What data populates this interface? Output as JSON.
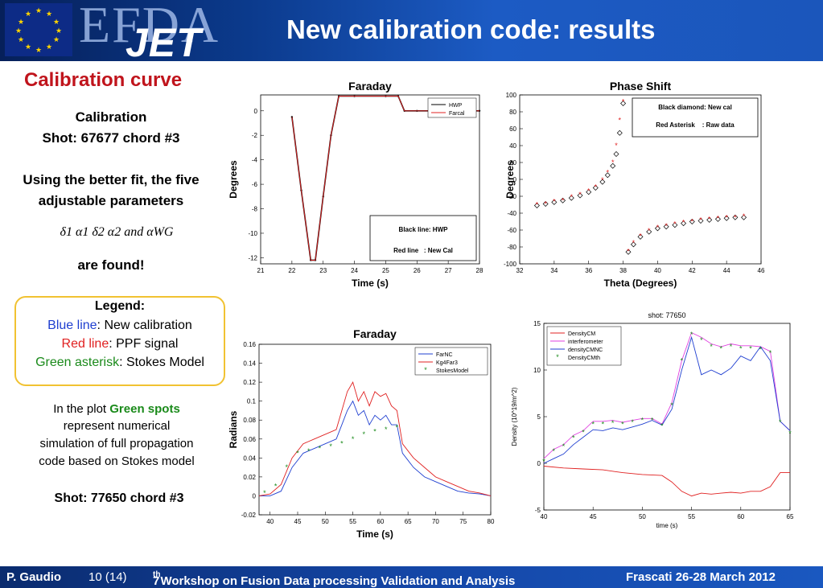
{
  "header": {
    "title": "New calibration code: results",
    "logo_efda": "EFDA",
    "logo_jet": "JET"
  },
  "left": {
    "heading": "Calibration curve",
    "calibration": "Calibration",
    "shot1": "Shot: 67677 chord #3",
    "better_fit_line1": "Using the better fit, the five",
    "better_fit_line2": "adjustable parameters",
    "params": "δ1  α1  δ2  α2  and  αWG",
    "are_found": "are found!",
    "legend_title": "Legend:",
    "legend_blue_key": "Blue line",
    "legend_blue_val": ": New calibration",
    "legend_red_key": "Red line",
    "legend_red_val": ": PPF signal",
    "legend_green_key": "Green asterisk",
    "legend_green_val": ": Stokes Model",
    "plot_line1_pre": "In the plot ",
    "plot_line1_em": "Green spots",
    "plot_line2": "represent numerical",
    "plot_line3": "simulation of full propagation",
    "plot_line4": "code based on Stokes model",
    "shot2": "Shot: 77650 chord #3"
  },
  "footer": {
    "author": "P. Gaudio",
    "page": "10 (14)",
    "workshop_pre": "7",
    "workshop_sup": "th",
    "workshop_rest": " Workshop on Fusion Data processing Validation and Analysis",
    "place_date": "Frascati 26-28 March 2012"
  },
  "colors": {
    "accent_red": "#c0141c",
    "blue": "#1f3fd0",
    "red": "#e02020",
    "green": "#1a8a1a",
    "legend_border": "#f1c232"
  },
  "chart_data": [
    {
      "type": "line",
      "title": "Faraday",
      "xlabel": "Time (s)",
      "ylabel": "Degrees",
      "xlim": [
        21,
        28
      ],
      "ylim": [
        -12.5,
        1.3
      ],
      "xticks": [
        21,
        22,
        23,
        24,
        25,
        26,
        27,
        28
      ],
      "yticks": [
        0,
        -2,
        -4,
        -6,
        -8,
        -10,
        -12
      ],
      "legend": [
        "HWP",
        "Farcal"
      ],
      "legend_placement": "top-right",
      "annotation": [
        "Black line: HWP",
        "Red line   : New Cal"
      ],
      "series": [
        {
          "name": "HWP",
          "color": "#000000",
          "x": [
            22.0,
            22.3,
            22.6,
            22.75,
            23.0,
            23.25,
            23.5,
            24.0,
            25.0,
            25.4,
            25.6,
            26.0,
            27.0,
            28.0
          ],
          "y": [
            -0.5,
            -6.5,
            -12.2,
            -12.2,
            -7.0,
            -2.0,
            1.2,
            1.2,
            1.2,
            1.2,
            0.0,
            0.0,
            0.0,
            0.0
          ]
        },
        {
          "name": "Farcal",
          "color": "#e02020",
          "x": [
            22.0,
            22.3,
            22.6,
            22.75,
            23.0,
            23.25,
            23.5,
            24.0,
            25.0,
            25.4,
            25.6,
            26.0,
            27.0,
            28.0
          ],
          "y": [
            -0.5,
            -6.5,
            -12.2,
            -12.2,
            -7.0,
            -2.0,
            1.2,
            1.2,
            1.2,
            1.2,
            0.0,
            0.0,
            0.0,
            0.0
          ]
        }
      ]
    },
    {
      "type": "scatter",
      "title": "Phase Shift",
      "xlabel": "Theta (Degrees)",
      "ylabel": "Degrees",
      "xlim": [
        32,
        46
      ],
      "ylim": [
        -100,
        100
      ],
      "xticks": [
        32,
        34,
        36,
        38,
        40,
        42,
        44,
        46
      ],
      "yticks": [
        100,
        80,
        60,
        40,
        20,
        0,
        -20,
        -40,
        -60,
        -80,
        -100
      ],
      "annotation": [
        "Black diamond: New cal",
        "Red Asterisk    : Raw data"
      ],
      "series": [
        {
          "name": "New cal",
          "marker": "diamond",
          "color": "#000000",
          "x": [
            33.0,
            33.5,
            34.0,
            34.5,
            35.0,
            35.5,
            36.0,
            36.4,
            36.8,
            37.1,
            37.4,
            37.6,
            37.8,
            38.0,
            38.3,
            38.6,
            39.0,
            39.5,
            40.0,
            40.5,
            41.0,
            41.5,
            42.0,
            42.5,
            43.0,
            43.5,
            44.0,
            44.5,
            45.0
          ],
          "y": [
            -31,
            -29,
            -27,
            -25,
            -22,
            -19,
            -15,
            -10,
            -3,
            5,
            16,
            30,
            55,
            90,
            -86,
            -77,
            -68,
            -62,
            -58,
            -56,
            -54,
            -52,
            -50,
            -49,
            -48,
            -47,
            -46,
            -45,
            -45
          ]
        },
        {
          "name": "Raw data",
          "marker": "asterisk",
          "color": "#e02020",
          "x": [
            33.0,
            33.5,
            34.0,
            34.5,
            35.0,
            35.5,
            36.0,
            36.4,
            36.8,
            37.1,
            37.4,
            37.6,
            37.8,
            38.0,
            38.3,
            38.6,
            39.0,
            39.5,
            40.0,
            40.5,
            41.0,
            41.5,
            42.0,
            42.5,
            43.0,
            43.5,
            44.0,
            44.5,
            45.0
          ],
          "y": [
            -30,
            -29,
            -26,
            -25,
            -21,
            -18,
            -14,
            -9,
            -1,
            8,
            20,
            40,
            70,
            92,
            -85,
            -75,
            -67,
            -61,
            -57,
            -55,
            -53,
            -51,
            -50,
            -48,
            -47,
            -46,
            -45,
            -45,
            -44
          ]
        }
      ]
    },
    {
      "type": "line",
      "title": "Faraday",
      "xlabel": "Time (s)",
      "ylabel": "Radians",
      "xlim": [
        38,
        80
      ],
      "ylim": [
        -0.02,
        0.16
      ],
      "xticks": [
        40,
        45,
        50,
        55,
        60,
        65,
        70,
        75,
        80
      ],
      "yticks": [
        0.16,
        0.14,
        0.12,
        0.1,
        0.08,
        0.06,
        0.04,
        0.02,
        0,
        -0.02
      ],
      "legend": [
        "FarNC",
        "Kg4Far3",
        "StokesModel"
      ],
      "legend_placement": "top-right",
      "series": [
        {
          "name": "FarNC",
          "color": "#1f3fd0",
          "x": [
            38,
            40,
            42,
            44,
            46,
            48,
            50,
            52,
            53,
            54,
            55,
            56,
            57,
            58,
            59,
            60,
            61,
            62,
            63,
            64,
            66,
            68,
            70,
            72,
            74,
            76,
            78,
            80
          ],
          "y": [
            0,
            0.0,
            0.005,
            0.03,
            0.045,
            0.05,
            0.055,
            0.06,
            0.075,
            0.09,
            0.1,
            0.085,
            0.09,
            0.075,
            0.085,
            0.08,
            0.085,
            0.075,
            0.075,
            0.045,
            0.03,
            0.02,
            0.015,
            0.01,
            0.005,
            0.003,
            0.002,
            0.0
          ]
        },
        {
          "name": "Kg4Far3",
          "color": "#e02020",
          "x": [
            38,
            40,
            42,
            44,
            46,
            48,
            50,
            52,
            53,
            54,
            55,
            56,
            57,
            58,
            59,
            60,
            61,
            62,
            63,
            64,
            66,
            68,
            70,
            72,
            74,
            76,
            78,
            80
          ],
          "y": [
            0,
            0.002,
            0.012,
            0.04,
            0.055,
            0.06,
            0.065,
            0.07,
            0.09,
            0.11,
            0.12,
            0.1,
            0.11,
            0.095,
            0.11,
            0.105,
            0.108,
            0.095,
            0.09,
            0.055,
            0.04,
            0.03,
            0.02,
            0.015,
            0.01,
            0.005,
            0.003,
            0.0
          ]
        },
        {
          "name": "StokesModel",
          "color": "#1a8a1a",
          "x": [
            39,
            41,
            43,
            45,
            47,
            49,
            51,
            53,
            55,
            57,
            59,
            61,
            63
          ],
          "y": [
            0.003,
            0.01,
            0.03,
            0.045,
            0.047,
            0.05,
            0.052,
            0.055,
            0.06,
            0.065,
            0.068,
            0.07,
            0.072
          ]
        }
      ]
    },
    {
      "type": "line",
      "title": "shot: 77650",
      "xlabel": "time (s)",
      "ylabel": "Density (10^19/m^2)",
      "xlim": [
        40,
        65
      ],
      "ylim": [
        -5,
        15
      ],
      "xticks": [
        40,
        45,
        50,
        55,
        60,
        65
      ],
      "yticks": [
        15,
        10,
        5,
        0,
        -5
      ],
      "legend": [
        "DensityCM",
        "interferometer",
        "densityCMNC",
        "DensityCMth"
      ],
      "legend_placement": "top-left",
      "series": [
        {
          "name": "DensityCM",
          "color": "#e02020",
          "x": [
            40,
            42,
            44,
            46,
            48,
            50,
            52,
            53,
            54,
            55,
            56,
            57,
            58,
            59,
            60,
            61,
            62,
            63,
            64,
            65
          ],
          "y": [
            -0.3,
            -0.5,
            -0.6,
            -0.7,
            -1.0,
            -1.2,
            -1.3,
            -2.0,
            -3.0,
            -3.5,
            -3.2,
            -3.3,
            -3.2,
            -3.1,
            -3.2,
            -3.0,
            -3.0,
            -2.5,
            -1.0,
            -1.0
          ]
        },
        {
          "name": "interferometer",
          "color": "#e040e0",
          "x": [
            40,
            41,
            42,
            43,
            44,
            45,
            46,
            47,
            48,
            49,
            50,
            51,
            52,
            53,
            54,
            55,
            56,
            57,
            58,
            59,
            60,
            61,
            62,
            63,
            64,
            65
          ],
          "y": [
            0.5,
            1.5,
            2.0,
            3.0,
            3.5,
            4.5,
            4.5,
            4.6,
            4.4,
            4.6,
            4.8,
            4.8,
            4.2,
            6.5,
            11.0,
            14.0,
            13.5,
            12.8,
            12.5,
            12.8,
            12.6,
            12.6,
            12.5,
            12.0,
            4.5,
            3.5
          ]
        },
        {
          "name": "densityCMNC",
          "color": "#1f3fd0",
          "x": [
            40,
            41,
            42,
            43,
            44,
            45,
            46,
            47,
            48,
            49,
            50,
            51,
            52,
            53,
            54,
            55,
            56,
            57,
            58,
            59,
            60,
            61,
            62,
            63,
            64,
            65
          ],
          "y": [
            0.0,
            0.5,
            1.0,
            2.0,
            2.8,
            3.6,
            3.5,
            3.8,
            3.6,
            3.9,
            4.2,
            4.6,
            4.1,
            5.8,
            10.0,
            13.5,
            9.5,
            10.0,
            9.5,
            10.2,
            11.5,
            11.0,
            12.5,
            11.0,
            4.5,
            3.5
          ]
        },
        {
          "name": "DensityCMth",
          "color": "#1a8a1a",
          "x": [
            40,
            41,
            42,
            43,
            44,
            45,
            46,
            47,
            48,
            49,
            50,
            51,
            52,
            53,
            54,
            55,
            56,
            57,
            58,
            59,
            60,
            61,
            62,
            63,
            64,
            65
          ],
          "y": [
            0.2,
            1.3,
            1.8,
            2.7,
            3.3,
            4.2,
            4.2,
            4.3,
            4.2,
            4.4,
            4.6,
            4.6,
            4.0,
            6.2,
            11.0,
            13.8,
            13.2,
            12.5,
            12.3,
            12.5,
            12.3,
            12.3,
            12.2,
            11.8,
            4.4,
            3.2
          ]
        }
      ]
    }
  ]
}
